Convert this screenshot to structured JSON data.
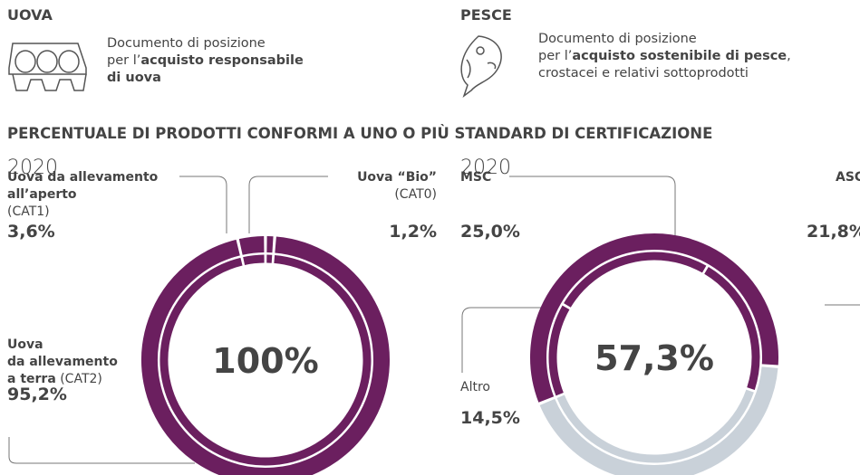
{
  "header": {
    "left": {
      "title": "UOVA",
      "lines": [
        [
          {
            "text": "Documento di posizione",
            "bold": false
          }
        ],
        [
          {
            "text": "per l’",
            "bold": false
          },
          {
            "text": "acquisto responsabile",
            "bold": true
          }
        ],
        [
          {
            "text": "di uova",
            "bold": true
          }
        ]
      ]
    },
    "right": {
      "title": "PESCE",
      "lines": [
        [
          {
            "text": "Documento di posizione",
            "bold": false
          }
        ],
        [
          {
            "text": "per l’",
            "bold": false
          },
          {
            "text": "acquisto sostenibile di pesce",
            "bold": true
          },
          {
            "text": ",",
            "bold": false
          }
        ],
        [
          {
            "text": "crostacei e relativi sottoprodotti",
            "bold": false
          }
        ]
      ]
    },
    "section_title": "PERCENTUALE DI PRODOTTI CONFORMI A UNO O PIÙ STANDARD DI CERTIFICAZIONE"
  },
  "chart_data": [
    {
      "type": "pie",
      "title": "2020",
      "color": "#6b1f5f",
      "rest_color": "#c9d1d9",
      "labels": [
        [
          [
            {
              "text": "Uova da allevamento",
              "bold": true
            }
          ],
          [
            {
              "text": "all’aperto",
              "bold": true
            }
          ],
          [
            {
              "text": "(CAT1)",
              "bold": false
            }
          ]
        ],
        [
          [
            {
              "text": "Uova “Bio”",
              "bold": true
            }
          ],
          [
            {
              "text": "(CAT0)",
              "bold": false
            }
          ]
        ],
        [
          [
            {
              "text": "Uova",
              "bold": true
            }
          ],
          [
            {
              "text": "da allevamento",
              "bold": true
            }
          ],
          [
            {
              "text": "a terra",
              "bold": true
            },
            {
              "text": " (CAT2)",
              "bold": false
            }
          ]
        ]
      ],
      "values": [
        3.6,
        1.2,
        95.2
      ],
      "value_labels": [
        "3,6%",
        "1,2%",
        "95,2%"
      ],
      "total": 100,
      "total_label": "100%"
    },
    {
      "type": "pie",
      "title": "2020",
      "color": "#6b1f5f",
      "rest_color": "#c9d1d9",
      "labels": [
        [
          [
            {
              "text": "MSC",
              "bold": true
            }
          ]
        ],
        [
          [
            {
              "text": "ASC",
              "bold": true
            }
          ]
        ],
        [
          [
            {
              "text": "Altro",
              "bold": false
            }
          ]
        ]
      ],
      "values": [
        25.0,
        21.8,
        14.5
      ],
      "value_labels": [
        "25,0%",
        "21,8%",
        "14,5%"
      ],
      "total": 57.3,
      "total_label": "57,3%"
    }
  ]
}
